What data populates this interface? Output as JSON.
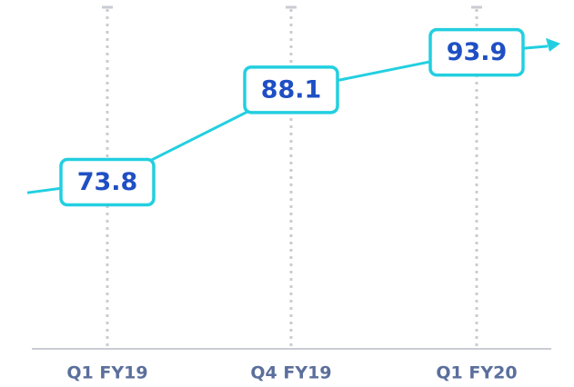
{
  "chart_data": {
    "type": "line",
    "categories": [
      "Q1 FY19",
      "Q4 FY19",
      "Q1 FY20"
    ],
    "values": [
      73.8,
      88.1,
      93.9
    ],
    "color": "#22cfe0",
    "ylim": [
      48,
      102
    ]
  }
}
